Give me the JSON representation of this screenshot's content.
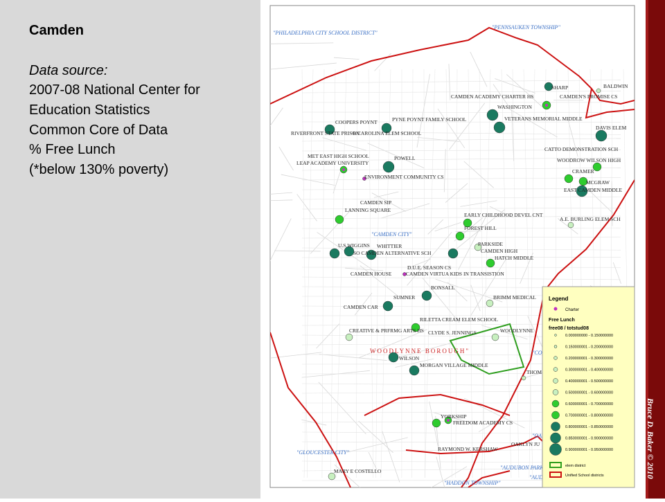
{
  "slide": {
    "title": "Camden",
    "source_label": "Data source:",
    "source_lines": [
      "2007-08 National Center for",
      "Education Statistics",
      "Common Core of Data",
      "% Free Lunch",
      "(*below 130% poverty)"
    ],
    "credit": "Bruce D. Baker © 2010"
  },
  "map": {
    "districts": [
      "\"PHILADELPHIA CITY SCHOOL DISTRICT\"",
      "\"PENNSAUKEN TOWNSHIP\"",
      "\"CAMDEN CITY\"",
      "WOODLYNNE BOROUGH\"",
      "\"GLOUCESTER CITY\"",
      "\"OAKLYN",
      "\"AUDUBON PARK B",
      "\"AUD",
      "\"HADDON TOWNSHIP\"",
      "\"CO"
    ],
    "schools": [
      "BALDWIN",
      "SHARP",
      "CAMDEN ACADEMY CHARTER HS",
      "CAMDEN'S PROMISE CS",
      "WASHINGTON",
      "VETERANS MEMORIAL MIDDLE",
      "DAVIS ELEM",
      "PYNE POYNT FAMILY SCHOOL",
      "COOPERS POYNT",
      "RIVERFRONT STATE PRISON",
      "R CAROLINA ELEM SCHOOL",
      "CATTO DEMONSTRATION SCH",
      "WOODROW WILSON HIGH",
      "MET EAST HIGH SCHOOL",
      "LEAP ACADEMY UNIVERSITY",
      "POWELL",
      "ENVIRONMENT COMMUNITY CS",
      "CRAMER",
      "MCGRAW",
      "EAST CAMDEN MIDDLE",
      "CAMDEN SIP",
      "LANNING SQUARE",
      "EARLY CHILDHOOD DEVEL CNT",
      "A.E. BURLING ELEM SCH",
      "FOREST HILL",
      "PARKSIDE",
      "U.S.WIGGINS",
      "WHITTIER",
      "SO CAMDEN ALTERNATIVE SCH",
      "CAMDEN HIGH",
      "HATCH MIDDLE",
      "D.U.E. SEASON CS",
      "CAMDEN HOUSE",
      "CAMDEN VIRTUA KIDS IN TRANSISTION",
      "BONSALL",
      "SUMNER",
      "BRIMM MEDICAL",
      "CAMDEN CAR",
      "RILETTA CREAM ELEM SCHOOL",
      "CREATIVE & PRFRMG ARTS HS",
      "CLYDE S. JENNINGS",
      "WOODLYNNE",
      "WILSON",
      "MORGAN VILLAGE MIDDLE",
      "THOM",
      "YORKSHIP",
      "FREEDOM ACADEMY CS",
      "OAKLYN JU",
      "RAYMOND W. KERSHAW",
      "MARY E COSTELLO"
    ],
    "legend": {
      "title": "Legend",
      "charter": "Charter",
      "free_lunch": "Free Lunch",
      "field": "free08 / totstud08",
      "classes": [
        "0.000000000 - 0.150000000",
        "0.150000001 - 0.200000000",
        "0.200000001 - 0.300000000",
        "0.300000001 - 0.400000000",
        "0.400000001 - 0.500000000",
        "0.500000001 - 0.600000000",
        "0.600000001 - 0.700000000",
        "0.700000001 - 0.800000000",
        "0.800000001 - 0.850000000",
        "0.850000001 - 0.900000000",
        "0.900000001 - 0.950000000"
      ],
      "elem": "elem district",
      "unified": "Unified School districts"
    },
    "colors": {
      "water_boundary": "#cc1111",
      "elem_boundary": "#2e9e1e",
      "street": "#d0d0d0",
      "legend_bg": "#ffffc0",
      "high": "#1a7a60",
      "mid": "#2ecc2e",
      "low": "#c8f0c0",
      "charter": "#c030c0",
      "district_label": "#3a6fc4",
      "woodlynne_label": "#cc2222"
    }
  }
}
